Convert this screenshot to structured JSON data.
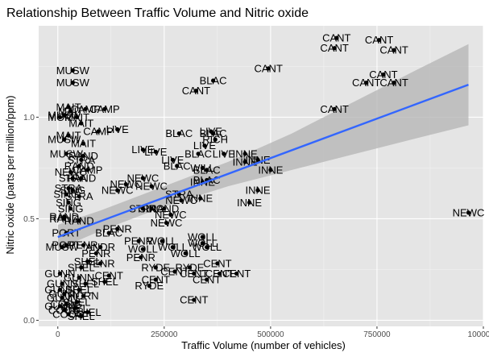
{
  "chart_data": {
    "type": "scatter",
    "title": "Relationship Between Traffic Volume and Nitric oxide",
    "xlabel": "Traffic Volume (number of vehicles)",
    "ylabel": "Nitric oxide (parts per million/ppm)",
    "xlim": [
      -45000,
      1000000
    ],
    "ylim": [
      -0.03,
      1.45
    ],
    "x_ticks": [
      0,
      250000,
      500000,
      750000,
      1000000
    ],
    "x_tick_labels": [
      "0",
      "250000",
      "500000",
      "750000",
      "1000000"
    ],
    "y_ticks": [
      0.0,
      0.5,
      1.0
    ],
    "y_tick_labels": [
      "0.0",
      "0.5",
      "1.0"
    ],
    "grid": true,
    "panel_background": "#e5e5e5",
    "point_color": "#000000",
    "smooth_line_color": "#3366ff",
    "confidence_band_color": "#b3b3b3",
    "smooth_line": {
      "method": "lm",
      "x": [
        0,
        965000
      ],
      "y": [
        0.41,
        1.16
      ]
    },
    "confidence_band": {
      "x": [
        0,
        100000,
        250000,
        400000,
        550000,
        700000,
        850000,
        965000
      ],
      "lower": [
        0.35,
        0.44,
        0.56,
        0.66,
        0.74,
        0.82,
        0.9,
        0.96
      ],
      "upper": [
        0.47,
        0.54,
        0.66,
        0.78,
        0.92,
        1.08,
        1.24,
        1.36
      ]
    },
    "points": [
      {
        "label": "CANT",
        "x": 655000,
        "y": 1.39
      },
      {
        "label": "CANT",
        "x": 755000,
        "y": 1.38
      },
      {
        "label": "CANT",
        "x": 650000,
        "y": 1.34
      },
      {
        "label": "CANT",
        "x": 790000,
        "y": 1.33
      },
      {
        "label": "CANT",
        "x": 495000,
        "y": 1.24
      },
      {
        "label": "CANT",
        "x": 765000,
        "y": 1.21
      },
      {
        "label": "CANT",
        "x": 725000,
        "y": 1.17
      },
      {
        "label": "CANT",
        "x": 790000,
        "y": 1.17
      },
      {
        "label": "CANT",
        "x": 650000,
        "y": 1.04
      },
      {
        "label": "CANT",
        "x": 325000,
        "y": 1.13
      },
      {
        "label": "BLAC",
        "x": 365000,
        "y": 1.18
      },
      {
        "label": "MUSW",
        "x": 35000,
        "y": 1.23
      },
      {
        "label": "MUSW",
        "x": 35000,
        "y": 1.17
      },
      {
        "label": "MAIT",
        "x": 25000,
        "y": 1.05
      },
      {
        "label": "CAMP",
        "x": 65000,
        "y": 1.04
      },
      {
        "label": "MAIT",
        "x": 30000,
        "y": 1.03
      },
      {
        "label": "CAMP",
        "x": 110000,
        "y": 1.04
      },
      {
        "label": "MUSW",
        "x": 15000,
        "y": 1.01
      },
      {
        "label": "MAIT",
        "x": 45000,
        "y": 1.0
      },
      {
        "label": "MAIT",
        "x": 55000,
        "y": 0.97
      },
      {
        "label": "MOR",
        "x": 5000,
        "y": 1.0
      },
      {
        "label": "CAMP",
        "x": 95000,
        "y": 0.93
      },
      {
        "label": "LIVE",
        "x": 140000,
        "y": 0.94
      },
      {
        "label": "MAIT",
        "x": 25000,
        "y": 0.91
      },
      {
        "label": "MUSW",
        "x": 15000,
        "y": 0.89
      },
      {
        "label": "MAIT",
        "x": 60000,
        "y": 0.87
      },
      {
        "label": "BLAC",
        "x": 285000,
        "y": 0.92
      },
      {
        "label": "BLAC",
        "x": 365000,
        "y": 0.92
      },
      {
        "label": "LIVE",
        "x": 360000,
        "y": 0.93
      },
      {
        "label": "RICH",
        "x": 370000,
        "y": 0.89
      },
      {
        "label": "LIVE",
        "x": 345000,
        "y": 0.86
      },
      {
        "label": "MUSW",
        "x": 20000,
        "y": 0.82
      },
      {
        "label": "RAND",
        "x": 60000,
        "y": 0.81
      },
      {
        "label": "LIVE",
        "x": 200000,
        "y": 0.84
      },
      {
        "label": "LIVE",
        "x": 230000,
        "y": 0.83
      },
      {
        "label": "BLAC",
        "x": 330000,
        "y": 0.82
      },
      {
        "label": "LIVE",
        "x": 390000,
        "y": 0.82
      },
      {
        "label": "INNE",
        "x": 440000,
        "y": 0.82
      },
      {
        "label": "INNE",
        "x": 470000,
        "y": 0.79
      },
      {
        "label": "INNE",
        "x": 440000,
        "y": 0.78
      },
      {
        "label": "STRA",
        "x": 55000,
        "y": 0.79
      },
      {
        "label": "RAND",
        "x": 50000,
        "y": 0.76
      },
      {
        "label": "LIVE",
        "x": 270000,
        "y": 0.79
      },
      {
        "label": "BLAC",
        "x": 280000,
        "y": 0.76
      },
      {
        "label": "WILL",
        "x": 340000,
        "y": 0.75
      },
      {
        "label": "BLAC",
        "x": 350000,
        "y": 0.74
      },
      {
        "label": "INNE",
        "x": 500000,
        "y": 0.74
      },
      {
        "label": "CAMP",
        "x": 70000,
        "y": 0.74
      },
      {
        "label": "NEWC",
        "x": 30000,
        "y": 0.73
      },
      {
        "label": "STRA",
        "x": 35000,
        "y": 0.7
      },
      {
        "label": "RAND",
        "x": 55000,
        "y": 0.7
      },
      {
        "label": "NEWC",
        "x": 200000,
        "y": 0.7
      },
      {
        "label": "NEWC",
        "x": 160000,
        "y": 0.67
      },
      {
        "label": "NEWC",
        "x": 220000,
        "y": 0.66
      },
      {
        "label": "BLAC",
        "x": 350000,
        "y": 0.69
      },
      {
        "label": "INNE",
        "x": 340000,
        "y": 0.68
      },
      {
        "label": "STRA",
        "x": 25000,
        "y": 0.65
      },
      {
        "label": "SING",
        "x": 35000,
        "y": 0.64
      },
      {
        "label": "NEWC",
        "x": 140000,
        "y": 0.64
      },
      {
        "label": "INNE",
        "x": 470000,
        "y": 0.64
      },
      {
        "label": "SING",
        "x": 20000,
        "y": 0.62
      },
      {
        "label": "STRA",
        "x": 50000,
        "y": 0.61
      },
      {
        "label": "STRA",
        "x": 285000,
        "y": 0.62
      },
      {
        "label": "INNE",
        "x": 335000,
        "y": 0.6
      },
      {
        "label": "NEWC",
        "x": 290000,
        "y": 0.59
      },
      {
        "label": "SING",
        "x": 25000,
        "y": 0.58
      },
      {
        "label": "INNE",
        "x": 450000,
        "y": 0.58
      },
      {
        "label": "RAND",
        "x": 250000,
        "y": 0.55
      },
      {
        "label": "STRA",
        "x": 200000,
        "y": 0.55
      },
      {
        "label": "SING",
        "x": 220000,
        "y": 0.55
      },
      {
        "label": "SING",
        "x": 30000,
        "y": 0.55
      },
      {
        "label": "NEWC",
        "x": 265000,
        "y": 0.52
      },
      {
        "label": "RAND",
        "x": 15000,
        "y": 0.51
      },
      {
        "label": "NEWC",
        "x": 965000,
        "y": 0.53
      },
      {
        "label": "RAND",
        "x": 50000,
        "y": 0.49
      },
      {
        "label": "RAND",
        "x": 15000,
        "y": 0.5
      },
      {
        "label": "NEWC",
        "x": 255000,
        "y": 0.48
      },
      {
        "label": "PENR",
        "x": 140000,
        "y": 0.45
      },
      {
        "label": "PORT",
        "x": 20000,
        "y": 0.43
      },
      {
        "label": "BLAC",
        "x": 120000,
        "y": 0.43
      },
      {
        "label": "WOLL",
        "x": 340000,
        "y": 0.41
      },
      {
        "label": "PENR",
        "x": 190000,
        "y": 0.39
      },
      {
        "label": "WOLL",
        "x": 245000,
        "y": 0.39
      },
      {
        "label": "WOLL",
        "x": 340000,
        "y": 0.38
      },
      {
        "label": "PORT",
        "x": 20000,
        "y": 0.37
      },
      {
        "label": "MUSW",
        "x": 10000,
        "y": 0.36
      },
      {
        "label": "PENR",
        "x": 60000,
        "y": 0.37
      },
      {
        "label": "ANDR",
        "x": 100000,
        "y": 0.36
      },
      {
        "label": "WOLL",
        "x": 200000,
        "y": 0.35
      },
      {
        "label": "WOLL",
        "x": 270000,
        "y": 0.36
      },
      {
        "label": "WOLL",
        "x": 350000,
        "y": 0.36
      },
      {
        "label": "PENR",
        "x": 90000,
        "y": 0.33
      },
      {
        "label": "PENR",
        "x": 195000,
        "y": 0.31
      },
      {
        "label": "WOLL",
        "x": 300000,
        "y": 0.33
      },
      {
        "label": "CENT",
        "x": 375000,
        "y": 0.28
      },
      {
        "label": "SHEL",
        "x": 70000,
        "y": 0.29
      },
      {
        "label": "PENR",
        "x": 100000,
        "y": 0.28
      },
      {
        "label": "RYDE",
        "x": 230000,
        "y": 0.26
      },
      {
        "label": "CENT",
        "x": 275000,
        "y": 0.24
      },
      {
        "label": "RYDE",
        "x": 310000,
        "y": 0.26
      },
      {
        "label": "CENT",
        "x": 380000,
        "y": 0.23
      },
      {
        "label": "CENT",
        "x": 420000,
        "y": 0.23
      },
      {
        "label": "CENT",
        "x": 320000,
        "y": 0.23
      },
      {
        "label": "SHEL",
        "x": 55000,
        "y": 0.26
      },
      {
        "label": "GUNN",
        "x": 5000,
        "y": 0.23
      },
      {
        "label": "GUNN",
        "x": 50000,
        "y": 0.21
      },
      {
        "label": "CENT",
        "x": 120000,
        "y": 0.22
      },
      {
        "label": "CENT",
        "x": 230000,
        "y": 0.2
      },
      {
        "label": "CENT",
        "x": 350000,
        "y": 0.2
      },
      {
        "label": "GUNN",
        "x": 10000,
        "y": 0.18
      },
      {
        "label": "SHEL",
        "x": 65000,
        "y": 0.18
      },
      {
        "label": "SHEL",
        "x": 110000,
        "y": 0.19
      },
      {
        "label": "RYDE",
        "x": 215000,
        "y": 0.17
      },
      {
        "label": "GUNN",
        "x": 5000,
        "y": 0.15
      },
      {
        "label": "SHEL",
        "x": 50000,
        "y": 0.15
      },
      {
        "label": "GUNN",
        "x": 15000,
        "y": 0.13
      },
      {
        "label": "HORN",
        "x": 60000,
        "y": 0.12
      },
      {
        "label": "GUNN",
        "x": 10000,
        "y": 0.11
      },
      {
        "label": "CENT",
        "x": 320000,
        "y": 0.1
      },
      {
        "label": "SHEL",
        "x": 45000,
        "y": 0.09
      },
      {
        "label": "COOG",
        "x": 20000,
        "y": 0.08
      },
      {
        "label": "GUNN",
        "x": 5000,
        "y": 0.07
      },
      {
        "label": "SHEL",
        "x": 40000,
        "y": 0.06
      },
      {
        "label": "COOG",
        "x": 15000,
        "y": 0.05
      },
      {
        "label": "SHEL",
        "x": 70000,
        "y": 0.04
      },
      {
        "label": "COOG",
        "x": 25000,
        "y": 0.03
      },
      {
        "label": "SHEL",
        "x": 55000,
        "y": 0.02
      }
    ]
  }
}
